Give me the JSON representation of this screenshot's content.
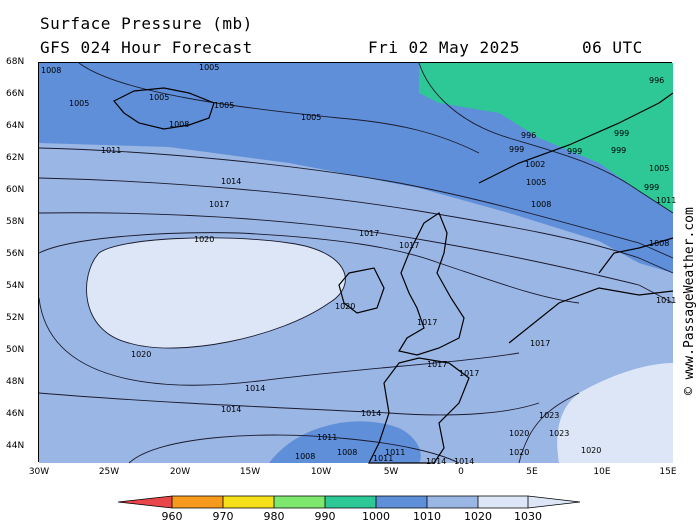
{
  "header": {
    "title": "Surface Pressure (mb)",
    "subtitle": "GFS 024 Hour Forecast",
    "date": "Fri 02 May 2025",
    "time": "06 UTC"
  },
  "axes": {
    "y_ticks": [
      "68N",
      "66N",
      "64N",
      "62N",
      "60N",
      "58N",
      "56N",
      "54N",
      "52N",
      "50N",
      "48N",
      "46N",
      "44N"
    ],
    "x_ticks": [
      "30W",
      "25W",
      "20W",
      "15W",
      "10W",
      "5W",
      "0",
      "5E",
      "10E",
      "15E"
    ]
  },
  "watermark": "© www.PassageWeather.com",
  "colorbar": {
    "labels": [
      "960",
      "970",
      "980",
      "990",
      "1000",
      "1010",
      "1020",
      "1030"
    ],
    "colors": [
      "#e8464a",
      "#f59a1c",
      "#f5e01a",
      "#7ee86e",
      "#2ec896",
      "#5f8fd8",
      "#9ab6e4",
      "#dce6f6"
    ]
  },
  "contour_labels": [
    "1008",
    "1005",
    "1005",
    "1005",
    "1005",
    "1008",
    "1005",
    "1011",
    "1014",
    "1017",
    "1020",
    "1017",
    "1017",
    "1020",
    "1017",
    "1017",
    "1017",
    "1020",
    "1014",
    "1014",
    "1014",
    "1011",
    "1008",
    "1008",
    "1011",
    "1011",
    "1014",
    "1014",
    "1020",
    "1020",
    "1023",
    "1023",
    "1020",
    "1017",
    "996",
    "999",
    "999",
    "999",
    "996",
    "999",
    "1002",
    "1005",
    "1008",
    "999",
    "1005",
    "1008",
    "1011",
    "1011"
  ]
}
